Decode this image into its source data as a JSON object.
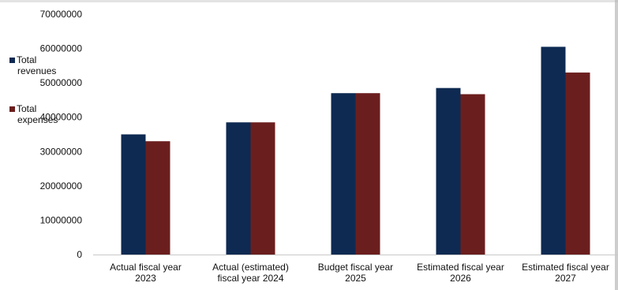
{
  "chart_data": {
    "type": "bar",
    "categories": [
      [
        "Actual fiscal year",
        "2023"
      ],
      [
        "Actual (estimated)",
        "fiscal year 2024"
      ],
      [
        "Budget fiscal year",
        "2025"
      ],
      [
        "Estimated fiscal year",
        "2026"
      ],
      [
        "Estimated fiscal year",
        "2027"
      ]
    ],
    "series": [
      {
        "name": [
          "Total",
          "revenues"
        ],
        "color": "#0e2a52",
        "values": [
          35000000,
          38500000,
          47000000,
          48500000,
          60500000
        ]
      },
      {
        "name": [
          "Total",
          "expenses"
        ],
        "color": "#6b1e1e",
        "values": [
          33000000,
          38500000,
          47000000,
          46700000,
          53000000
        ]
      }
    ],
    "ylim": [
      0,
      70000000
    ],
    "yticks": [
      "0",
      "10000000",
      "20000000",
      "30000000",
      "40000000",
      "50000000",
      "60000000",
      "70000000"
    ],
    "legend": "left",
    "grid": false,
    "title": "",
    "xlabel": "",
    "ylabel": ""
  }
}
